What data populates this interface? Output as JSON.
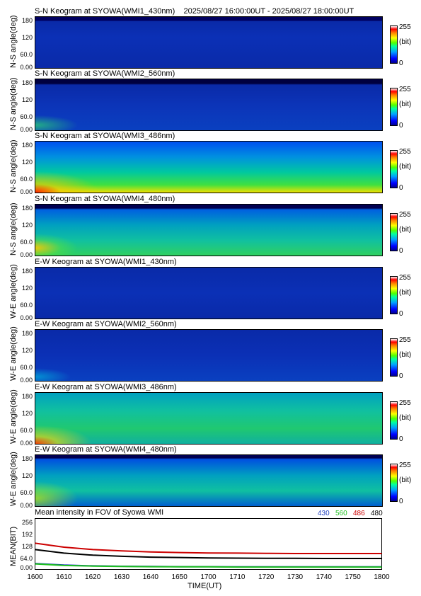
{
  "header": {
    "title_line": "S-N Keogram at SYOWA(WMI1_430nm)    2025/08/27 16:00:00UT - 2025/08/27 18:00:00UT"
  },
  "panels": [
    {
      "title": "S-N Keogram at SYOWA(WMI1_430nm)",
      "ylabel": "N-S angle(deg)"
    },
    {
      "title": "S-N Keogram at SYOWA(WMI2_560nm)",
      "ylabel": "N-S angle(deg)"
    },
    {
      "title": "S-N Keogram at SYOWA(WMI3_486nm)",
      "ylabel": "N-S angle(deg)"
    },
    {
      "title": "S-N Keogram at SYOWA(WMI4_480nm)",
      "ylabel": "N-S angle(deg)"
    },
    {
      "title": "E-W Keogram at SYOWA(WMI1_430nm)",
      "ylabel": "W-E angle(deg)"
    },
    {
      "title": "E-W Keogram at SYOWA(WMI2_560nm)",
      "ylabel": "W-E angle(deg)"
    },
    {
      "title": "E-W Keogram at SYOWA(WMI3_486nm)",
      "ylabel": "W-E angle(deg)"
    },
    {
      "title": "E-W Keogram at SYOWA(WMI4_480nm)",
      "ylabel": "W-E angle(deg)"
    }
  ],
  "keogram_yticks": [
    "180",
    "120",
    "60.0",
    "0.00"
  ],
  "colorbar": {
    "max": "255",
    "unit": "(bit)",
    "min": "0"
  },
  "mean_panel": {
    "title": "Mean intensity in FOV of Syowa WMI",
    "ylabel": "MEAN(BIT)",
    "yticks": [
      "256",
      "192",
      "128",
      "64.0",
      "0.00"
    ],
    "legend": [
      {
        "label": "430",
        "color": "#1f3fbf"
      },
      {
        "label": "560",
        "color": "#1fbf1f"
      },
      {
        "label": "486",
        "color": "#cc0000"
      },
      {
        "label": "480",
        "color": "#000000"
      }
    ]
  },
  "xaxis": {
    "label": "TIME(UT)",
    "ticks": [
      "1600",
      "1610",
      "1620",
      "1630",
      "1640",
      "1650",
      "1700",
      "1710",
      "1720",
      "1730",
      "1740",
      "1750",
      "1800"
    ]
  },
  "chart_data": {
    "type": "line",
    "title": "Mean intensity in FOV of Syowa WMI",
    "xlabel": "TIME(UT)",
    "ylabel": "MEAN(BIT)",
    "ylim": [
      0,
      256
    ],
    "x": [
      "1600",
      "1610",
      "1620",
      "1630",
      "1640",
      "1650",
      "1700",
      "1710",
      "1720",
      "1730",
      "1740",
      "1750",
      "1800"
    ],
    "series": [
      {
        "name": "430",
        "color": "#1f3fbf",
        "values": [
          30,
          22,
          18,
          16,
          15,
          14,
          14,
          13,
          13,
          13,
          13,
          13,
          13
        ]
      },
      {
        "name": "560",
        "color": "#1fbf1f",
        "values": [
          28,
          20,
          17,
          15,
          14,
          13,
          13,
          12,
          12,
          12,
          12,
          12,
          12
        ]
      },
      {
        "name": "486",
        "color": "#cc0000",
        "values": [
          132,
          112,
          100,
          93,
          88,
          85,
          83,
          82,
          81,
          80,
          80,
          80,
          80
        ]
      },
      {
        "name": "480",
        "color": "#000000",
        "values": [
          100,
          82,
          72,
          66,
          62,
          60,
          58,
          57,
          56,
          56,
          55,
          55,
          55
        ]
      }
    ]
  }
}
